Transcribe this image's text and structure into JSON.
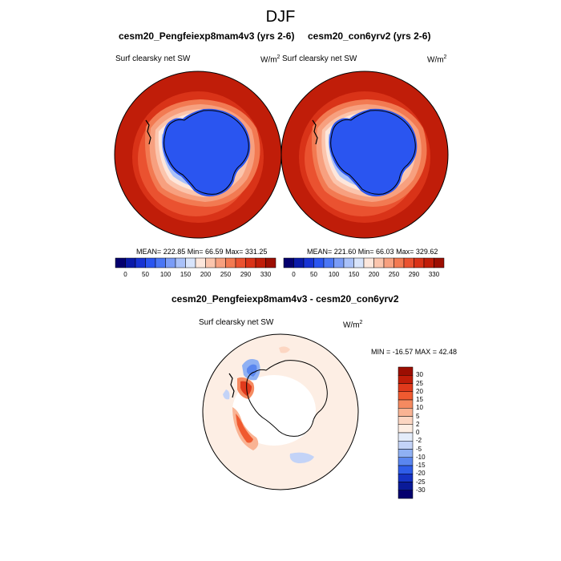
{
  "page": {
    "title": "DJF"
  },
  "panels": [
    {
      "title": "cesm20_Pengfeiexp8mam4v3 (yrs 2-6)",
      "variable": "Surf clearsky net SW",
      "units_base": "W/m",
      "units_exp": "2",
      "stats": "MEAN= 222.85  Min=  66.59  Max= 331.25"
    },
    {
      "title": "cesm20_con6yrv2 (yrs 2-6)",
      "variable": "Surf clearsky net SW",
      "units_base": "W/m",
      "units_exp": "2",
      "stats": "MEAN= 221.60  Min=  66.03  Max= 329.62"
    },
    {
      "title": "cesm20_Pengfeiexp8mam4v3 - cesm20_con6yrv2",
      "variable": "Surf clearsky net SW",
      "units_base": "W/m",
      "units_exp": "2",
      "stats": "MIN = -16.57 MAX =  42.48"
    }
  ],
  "chart_data": [
    {
      "type": "heatmap",
      "projection": "south-polar-stereographic",
      "title": "cesm20_Pengfeiexp8mam4v3 (yrs 2-6)",
      "variable": "Surf clearsky net SW",
      "units": "W/m2",
      "stats": {
        "mean": 222.85,
        "min": 66.59,
        "max": 331.25
      },
      "colorbar": {
        "orientation": "horizontal",
        "tick_labels": [
          "0",
          "50",
          "100",
          "150",
          "200",
          "250",
          "290",
          "330"
        ],
        "levels": [
          0,
          25,
          50,
          75,
          100,
          125,
          150,
          175,
          200,
          225,
          250,
          270,
          290,
          310,
          330
        ],
        "colors": [
          "#04006e",
          "#0a1aa8",
          "#1733d3",
          "#2a55f0",
          "#4a76f5",
          "#7a9cf7",
          "#a9c1f9",
          "#d8e4fb",
          "#fde7dc",
          "#fbc5ad",
          "#f7a07f",
          "#f27a52",
          "#ea5230",
          "#d93318",
          "#c01d09",
          "#9c0e02"
        ]
      }
    },
    {
      "type": "heatmap",
      "projection": "south-polar-stereographic",
      "title": "cesm20_con6yrv2 (yrs 2-6)",
      "variable": "Surf clearsky net SW",
      "units": "W/m2",
      "stats": {
        "mean": 221.6,
        "min": 66.03,
        "max": 329.62
      },
      "colorbar": {
        "orientation": "horizontal",
        "tick_labels": [
          "0",
          "50",
          "100",
          "150",
          "200",
          "250",
          "290",
          "330"
        ],
        "levels": [
          0,
          25,
          50,
          75,
          100,
          125,
          150,
          175,
          200,
          225,
          250,
          270,
          290,
          310,
          330
        ],
        "colors": [
          "#04006e",
          "#0a1aa8",
          "#1733d3",
          "#2a55f0",
          "#4a76f5",
          "#7a9cf7",
          "#a9c1f9",
          "#d8e4fb",
          "#fde7dc",
          "#fbc5ad",
          "#f7a07f",
          "#f27a52",
          "#ea5230",
          "#d93318",
          "#c01d09",
          "#9c0e02"
        ]
      }
    },
    {
      "type": "heatmap",
      "projection": "south-polar-stereographic",
      "title": "cesm20_Pengfeiexp8mam4v3 - cesm20_con6yrv2",
      "variable": "Surf clearsky net SW",
      "units": "W/m2",
      "stats": {
        "min": -16.57,
        "max": 42.48
      },
      "colorbar": {
        "orientation": "vertical",
        "tick_labels": [
          "30",
          "25",
          "20",
          "15",
          "10",
          "5",
          "2",
          "0",
          "-2",
          "-5",
          "-10",
          "-15",
          "-20",
          "-25",
          "-30"
        ],
        "colors": [
          "#9c0e02",
          "#c01d09",
          "#e03a1c",
          "#f05a30",
          "#f58a60",
          "#f9b393",
          "#fcd6c2",
          "#fdeee4",
          "#e4ecfa",
          "#c3d3f7",
          "#8fb0f3",
          "#5a86ef",
          "#2f5de8",
          "#1633c4",
          "#0a1a98",
          "#04006e"
        ]
      }
    }
  ]
}
